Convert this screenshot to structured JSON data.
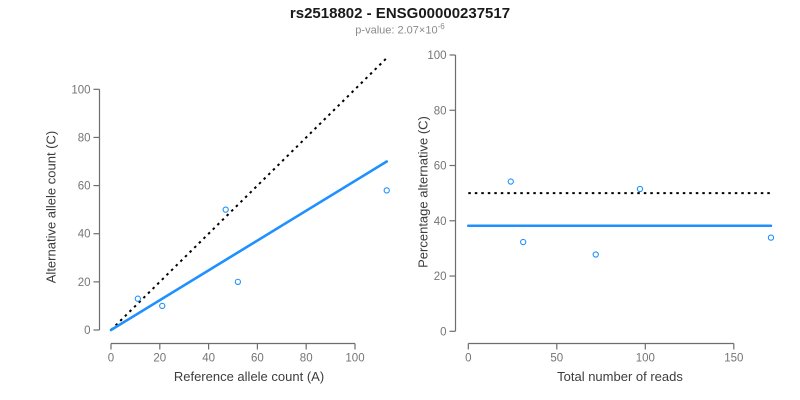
{
  "header": {
    "title": "rs2518802 - ENSG00000237517",
    "subtitle_prefix": "p-value: 2.07×10",
    "subtitle_exponent": "-6"
  },
  "colors": {
    "accent_blue": "#1E90FF",
    "dotted_line": "#000000",
    "axis": "#6e6e6e",
    "tick_label": "#757575",
    "axis_title": "#3d3d3d",
    "title": "#1a1a1a",
    "subtitle": "#8a8a8a"
  },
  "chart_data": [
    {
      "type": "scatter",
      "title": "",
      "xlabel": "Reference allele count (A)",
      "ylabel": "Alternative allele count (C)",
      "xlim": [
        0,
        113
      ],
      "ylim": [
        0,
        113
      ],
      "xticks": [
        0,
        20,
        40,
        60,
        80,
        100
      ],
      "yticks": [
        0,
        20,
        40,
        60,
        80,
        100
      ],
      "grid": false,
      "legend": "none",
      "points": [
        [
          11,
          13
        ],
        [
          21,
          10
        ],
        [
          47,
          50
        ],
        [
          52,
          20
        ],
        [
          113,
          58
        ]
      ],
      "lines": [
        {
          "name": "identity-line",
          "style": "dotted",
          "color": "#000000",
          "x": [
            0,
            113
          ],
          "y": [
            0,
            113
          ]
        },
        {
          "name": "regression-line",
          "style": "solid",
          "color": "#1E90FF",
          "x": [
            0,
            113
          ],
          "y": [
            0,
            70
          ]
        }
      ]
    },
    {
      "type": "scatter",
      "title": "",
      "xlabel": "Total number of reads",
      "ylabel": "Percentage alternative (C)",
      "xlim": [
        0,
        171
      ],
      "ylim": [
        0,
        100
      ],
      "xticks": [
        0,
        50,
        100,
        150
      ],
      "yticks": [
        0,
        20,
        40,
        60,
        80,
        100
      ],
      "grid": false,
      "legend": "none",
      "points": [
        [
          24,
          54.2
        ],
        [
          31,
          32.3
        ],
        [
          72,
          27.8
        ],
        [
          97,
          51.5
        ],
        [
          171,
          33.9
        ]
      ],
      "lines": [
        {
          "name": "expected-50-percent-line",
          "style": "dotted",
          "color": "#000000",
          "x": [
            0,
            171
          ],
          "y": [
            50,
            50
          ]
        },
        {
          "name": "mean-percentage-line",
          "style": "solid",
          "color": "#1E90FF",
          "x": [
            0,
            171
          ],
          "y": [
            38.2,
            38.2
          ]
        }
      ]
    }
  ]
}
